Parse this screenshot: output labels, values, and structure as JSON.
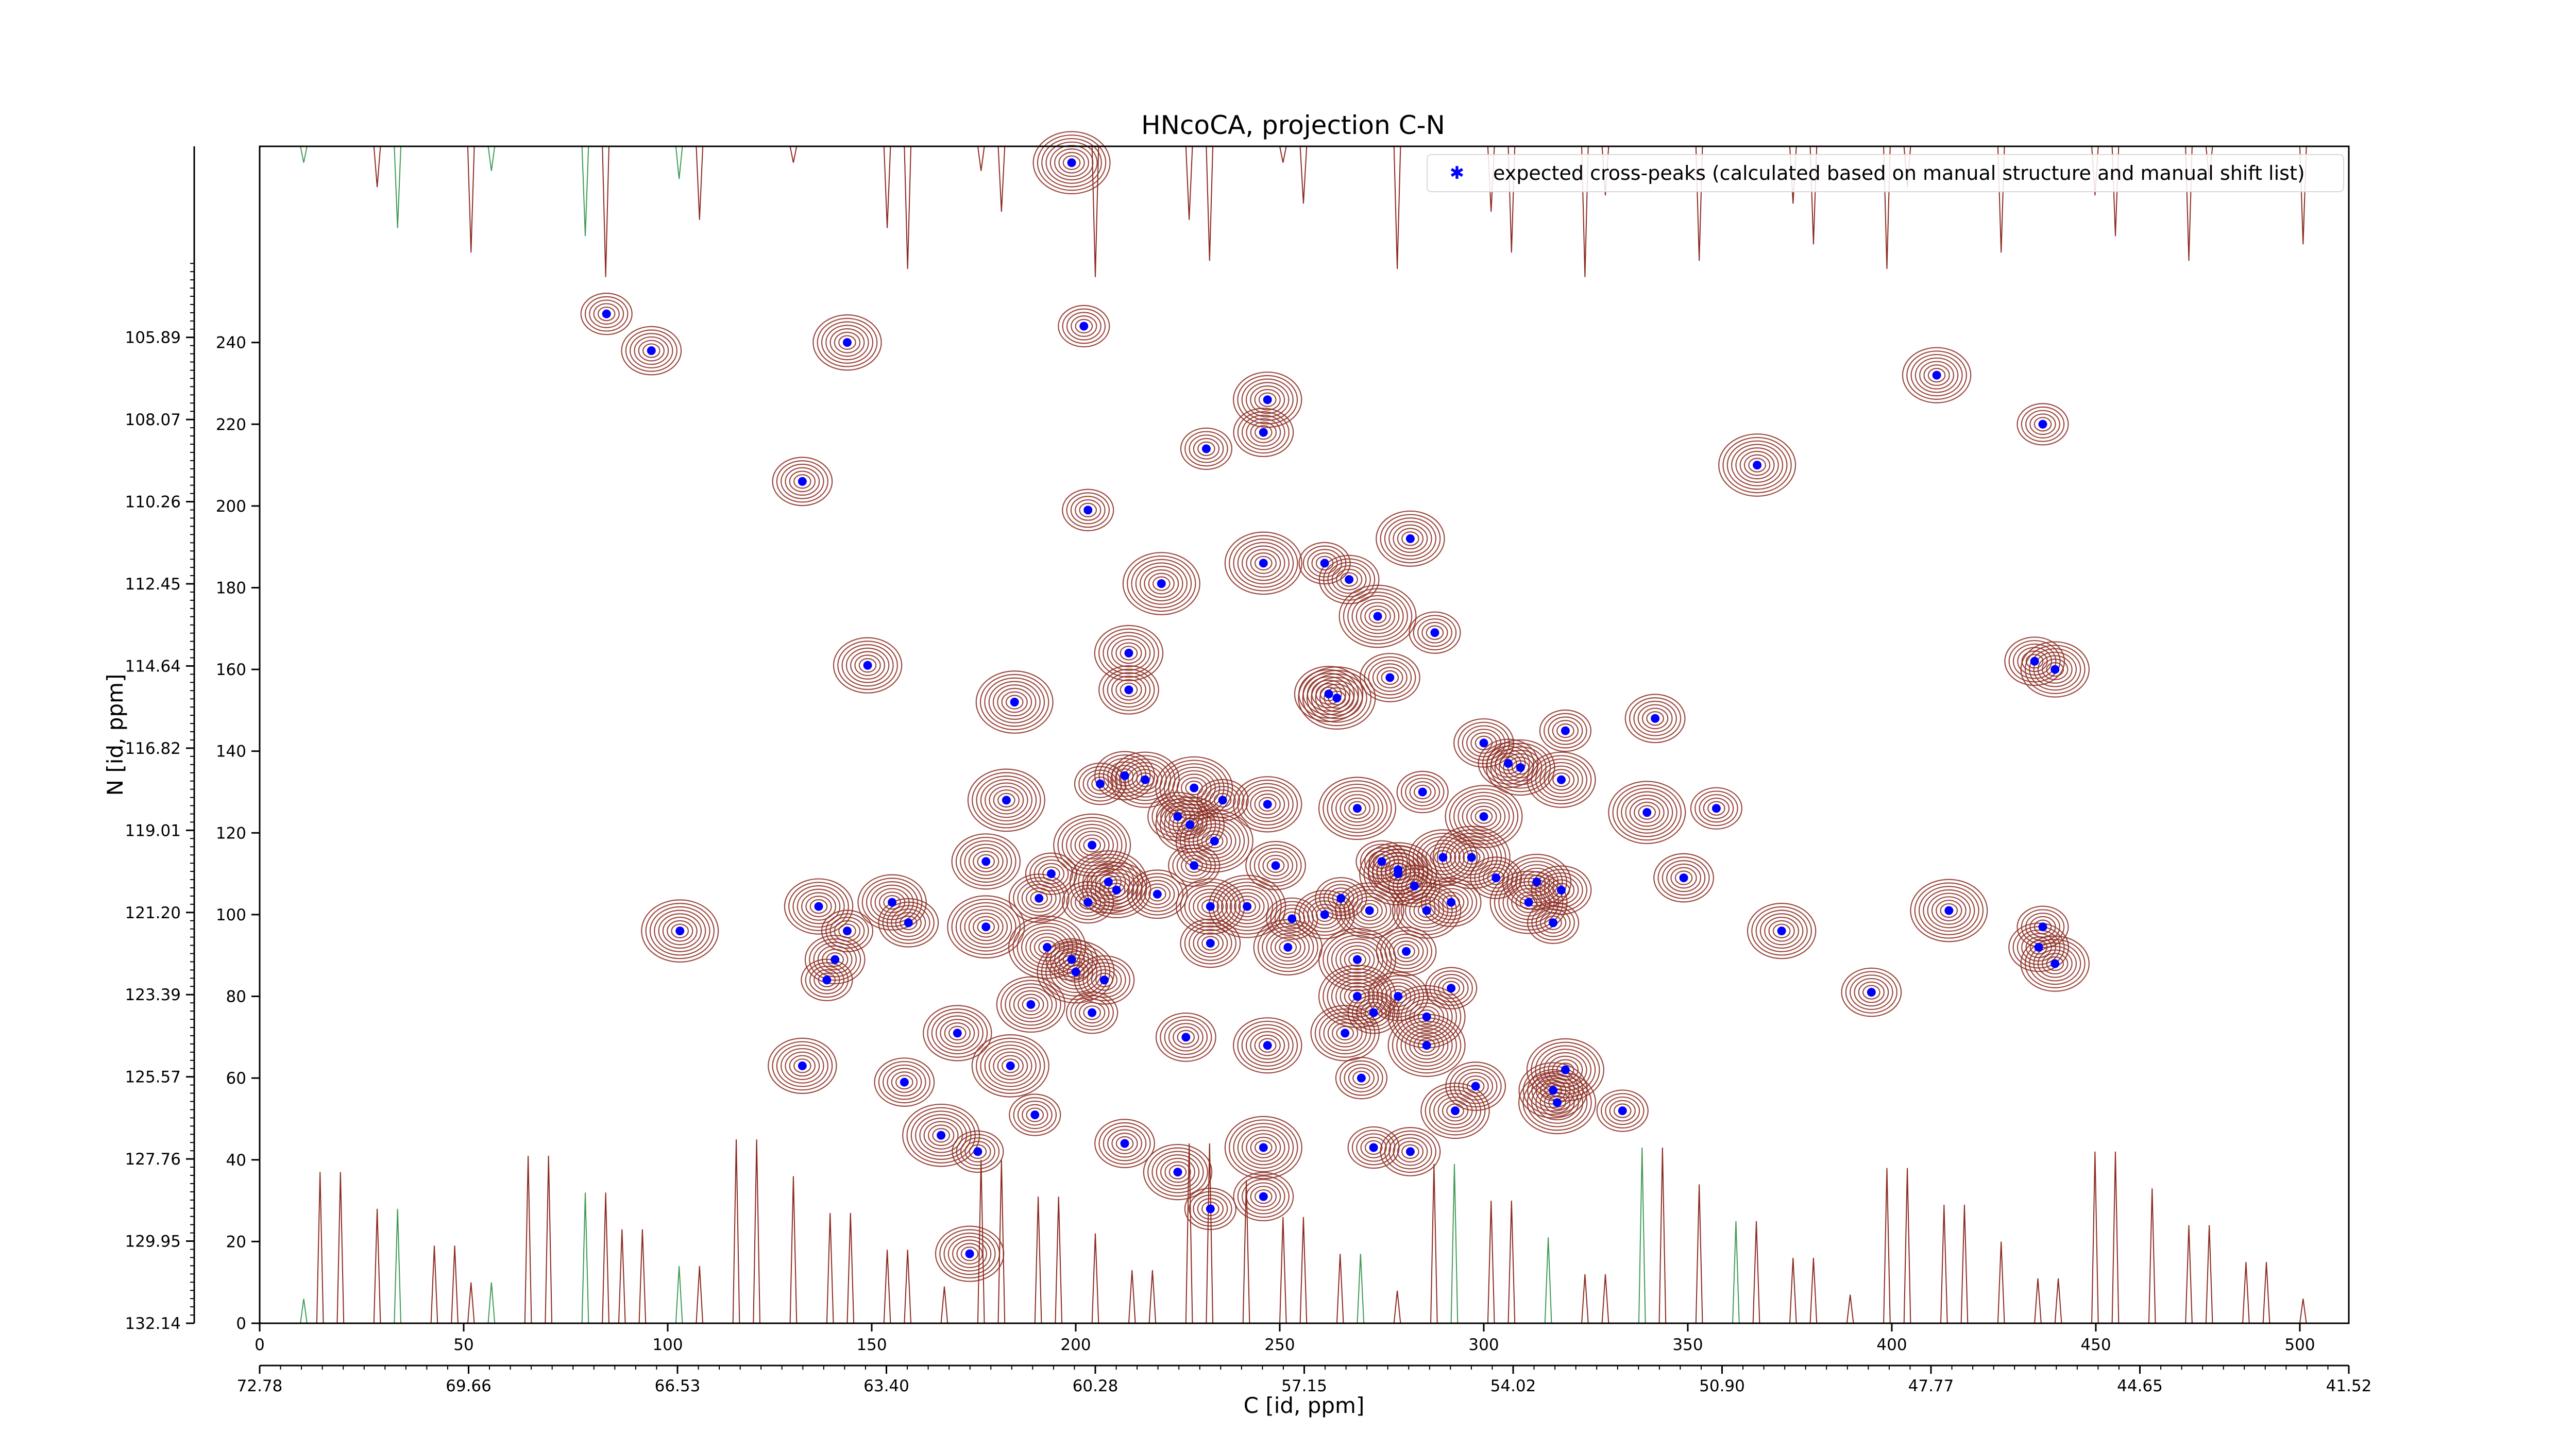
{
  "chart_data": {
    "type": "scatter",
    "title": "HNcoCA, projection C-N",
    "xlabel": "C [id, ppm]",
    "ylabel": "N [id, ppm]",
    "xlim": [
      0,
      512
    ],
    "ylim": [
      0,
      288
    ],
    "x_ticks_id": [
      "0",
      "50",
      "100",
      "150",
      "200",
      "250",
      "300",
      "350",
      "400",
      "450",
      "500"
    ],
    "y_ticks_id": [
      "0",
      "20",
      "40",
      "60",
      "80",
      "100",
      "120",
      "140",
      "160",
      "180",
      "200",
      "220",
      "240"
    ],
    "x_ticks_ppm": [
      "72.78",
      "69.66",
      "66.53",
      "63.40",
      "60.28",
      "57.15",
      "54.02",
      "50.90",
      "47.77",
      "44.65",
      "41.52"
    ],
    "y_ticks_ppm": [
      "132.14",
      "129.95",
      "127.76",
      "125.57",
      "123.39",
      "121.20",
      "119.01",
      "116.82",
      "114.64",
      "112.45",
      "110.26",
      "108.07",
      "105.89"
    ],
    "legend": {
      "label": "expected cross-peaks (calculated based on manual structure and manual shift list)",
      "placement": "top-right"
    },
    "grid": false,
    "colors": {
      "marker": "#0000ff",
      "contour_positive": "#8b2a20",
      "contour_negative": "#3f9a55",
      "axes": "#000000"
    },
    "series": [
      {
        "name": "expected cross-peaks (calculated based on manual structure and manual shift list)",
        "points": [
          [
            85,
            247
          ],
          [
            96,
            238
          ],
          [
            144,
            240
          ],
          [
            199,
            284
          ],
          [
            202,
            244
          ],
          [
            133,
            206
          ],
          [
            149,
            161
          ],
          [
            185,
            152
          ],
          [
            203,
            199
          ],
          [
            213,
            155
          ],
          [
            213,
            164
          ],
          [
            221,
            181
          ],
          [
            232,
            214
          ],
          [
            246,
            218
          ],
          [
            247,
            226
          ],
          [
            246,
            186
          ],
          [
            261,
            186
          ],
          [
            267,
            182
          ],
          [
            282,
            192
          ],
          [
            274,
            173
          ],
          [
            288,
            169
          ],
          [
            277,
            158
          ],
          [
            262,
            154
          ],
          [
            264,
            153
          ],
          [
            320,
            145
          ],
          [
            306,
            137
          ],
          [
            319,
            133
          ],
          [
            340,
            125
          ],
          [
            357,
            126
          ],
          [
            342,
            148
          ],
          [
            411,
            232
          ],
          [
            367,
            210
          ],
          [
            437,
            220
          ],
          [
            435,
            162
          ],
          [
            440,
            160
          ],
          [
            183,
            128
          ],
          [
            206,
            132
          ],
          [
            212,
            134
          ],
          [
            217,
            133
          ],
          [
            229,
            131
          ],
          [
            236,
            128
          ],
          [
            225,
            124
          ],
          [
            228,
            122
          ],
          [
            234,
            118
          ],
          [
            229,
            112
          ],
          [
            249,
            112
          ],
          [
            247,
            127
          ],
          [
            269,
            126
          ],
          [
            285,
            130
          ],
          [
            300,
            142
          ],
          [
            309,
            136
          ],
          [
            300,
            124
          ],
          [
            275,
            113
          ],
          [
            279,
            111
          ],
          [
            290,
            114
          ],
          [
            297,
            114
          ],
          [
            303,
            109
          ],
          [
            319,
            106
          ],
          [
            286,
            101
          ],
          [
            279,
            110
          ],
          [
            283,
            107
          ],
          [
            292,
            103
          ],
          [
            313,
            108
          ],
          [
            311,
            103
          ],
          [
            317,
            98
          ],
          [
            349,
            109
          ],
          [
            178,
            113
          ],
          [
            204,
            117
          ],
          [
            194,
            110
          ],
          [
            191,
            104
          ],
          [
            210,
            106
          ],
          [
            208,
            108
          ],
          [
            203,
            103
          ],
          [
            220,
            105
          ],
          [
            233,
            102
          ],
          [
            242,
            102
          ],
          [
            253,
            99
          ],
          [
            261,
            100
          ],
          [
            272,
            101
          ],
          [
            269,
            89
          ],
          [
            265,
            104
          ],
          [
            233,
            93
          ],
          [
            252,
            92
          ],
          [
            178,
            97
          ],
          [
            144,
            96
          ],
          [
            141,
            89
          ],
          [
            137,
            102
          ],
          [
            103,
            96
          ],
          [
            139,
            84
          ],
          [
            159,
            98
          ],
          [
            155,
            103
          ],
          [
            193,
            92
          ],
          [
            199,
            89
          ],
          [
            207,
            84
          ],
          [
            189,
            78
          ],
          [
            200,
            86
          ],
          [
            204,
            76
          ],
          [
            281,
            91
          ],
          [
            373,
            96
          ],
          [
            414,
            101
          ],
          [
            437,
            97
          ],
          [
            436,
            92
          ],
          [
            440,
            88
          ],
          [
            269,
            80
          ],
          [
            273,
            76
          ],
          [
            279,
            80
          ],
          [
            266,
            71
          ],
          [
            286,
            75
          ],
          [
            292,
            82
          ],
          [
            395,
            81
          ],
          [
            171,
            71
          ],
          [
            184,
            63
          ],
          [
            190,
            51
          ],
          [
            227,
            70
          ],
          [
            247,
            68
          ],
          [
            286,
            68
          ],
          [
            270,
            60
          ],
          [
            298,
            58
          ],
          [
            317,
            57
          ],
          [
            318,
            54
          ],
          [
            334,
            52
          ],
          [
            158,
            59
          ],
          [
            133,
            63
          ],
          [
            167,
            46
          ],
          [
            176,
            42
          ],
          [
            212,
            44
          ],
          [
            225,
            37
          ],
          [
            246,
            43
          ],
          [
            273,
            43
          ],
          [
            282,
            42
          ],
          [
            293,
            52
          ],
          [
            320,
            62
          ],
          [
            233,
            28
          ],
          [
            246,
            31
          ],
          [
            174,
            17
          ]
        ]
      }
    ]
  }
}
